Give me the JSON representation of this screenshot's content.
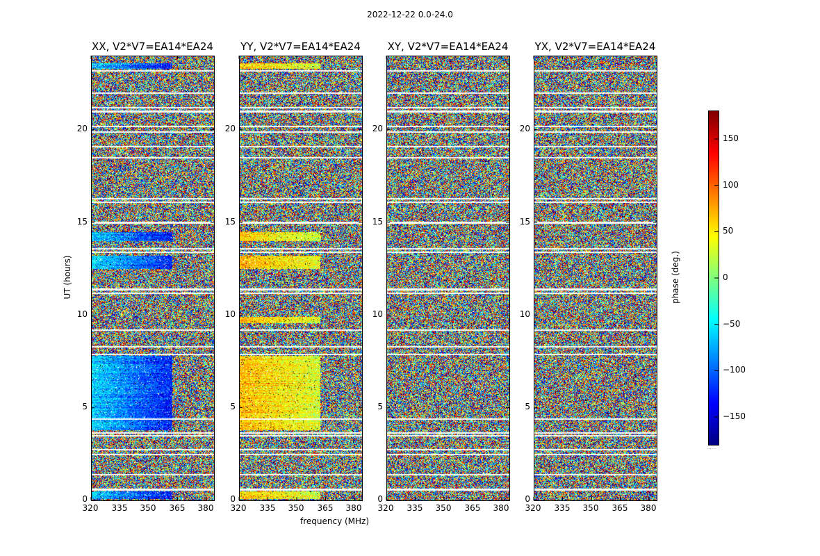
{
  "figure": {
    "suptitle": "2022-12-22 0.0-24.0",
    "xlabel": "frequency (MHz)",
    "ylabel": "UT (hours)"
  },
  "colorbar": {
    "label": "phase (deg.)",
    "ticks": [
      "150",
      "100",
      "50",
      "0",
      "−50",
      "−100",
      "−150"
    ],
    "tick_values": [
      150,
      100,
      50,
      0,
      -50,
      -100,
      -150
    ],
    "range": [
      -180,
      180
    ],
    "footer": "......"
  },
  "chart_data": [
    {
      "type": "heatmap",
      "title": "XX, V2*V7=EA14*EA24",
      "xlabel": "",
      "ylabel": "UT (hours)",
      "xlim": [
        320,
        384
      ],
      "ylim": [
        0,
        24
      ],
      "xticks": [
        "320",
        "335",
        "350",
        "365",
        "380"
      ],
      "yticks": [
        "0",
        "5",
        "10",
        "15",
        "20"
      ],
      "coherent_phase_deg": -60,
      "coherent_regions_mhz_ut": [
        [
          320,
          362,
          3.8,
          7.8
        ],
        [
          320,
          362,
          12.5,
          13.2
        ],
        [
          320,
          362,
          14.0,
          14.5
        ],
        [
          320,
          362,
          0.1,
          0.5
        ],
        [
          320,
          362,
          23.3,
          23.6
        ]
      ]
    },
    {
      "type": "heatmap",
      "title": "YY, V2*V7=EA14*EA24",
      "xlabel": "frequency (MHz)",
      "ylabel": "",
      "xlim": [
        320,
        384
      ],
      "ylim": [
        0,
        24
      ],
      "xticks": [
        "320",
        "335",
        "350",
        "365",
        "380"
      ],
      "yticks": [
        "0",
        "5",
        "10",
        "15",
        "20"
      ],
      "coherent_phase_deg": 70,
      "coherent_regions_mhz_ut": [
        [
          320,
          362,
          3.8,
          7.8
        ],
        [
          320,
          362,
          12.5,
          13.2
        ],
        [
          320,
          362,
          14.0,
          14.5
        ],
        [
          320,
          362,
          0.1,
          0.5
        ],
        [
          320,
          362,
          23.3,
          23.6
        ],
        [
          320,
          362,
          9.6,
          9.9
        ]
      ]
    },
    {
      "type": "heatmap",
      "title": "XY, V2*V7=EA14*EA24",
      "xlabel": "",
      "ylabel": "",
      "xlim": [
        320,
        384
      ],
      "ylim": [
        0,
        24
      ],
      "xticks": [
        "320",
        "335",
        "350",
        "365",
        "380"
      ],
      "yticks": [
        "0",
        "5",
        "10",
        "15",
        "20"
      ],
      "coherent_phase_deg": null,
      "coherent_regions_mhz_ut": []
    },
    {
      "type": "heatmap",
      "title": "YX, V2*V7=EA14*EA24",
      "xlabel": "",
      "ylabel": "",
      "xlim": [
        320,
        384
      ],
      "ylim": [
        0,
        24
      ],
      "xticks": [
        "320",
        "335",
        "350",
        "365",
        "380"
      ],
      "yticks": [
        "0",
        "5",
        "10",
        "15",
        "20"
      ],
      "coherent_phase_deg": null,
      "coherent_regions_mhz_ut": []
    }
  ],
  "flagged_rows_ut": [
    0.6,
    1.4,
    2.5,
    2.75,
    3.5,
    3.65,
    4.4,
    7.9,
    8.3,
    9.2,
    11.2,
    11.4,
    13.4,
    13.6,
    15.0,
    16.1,
    16.3,
    18.5,
    19.1,
    19.9,
    20.2,
    21.0,
    21.2,
    22.0,
    23.2
  ]
}
